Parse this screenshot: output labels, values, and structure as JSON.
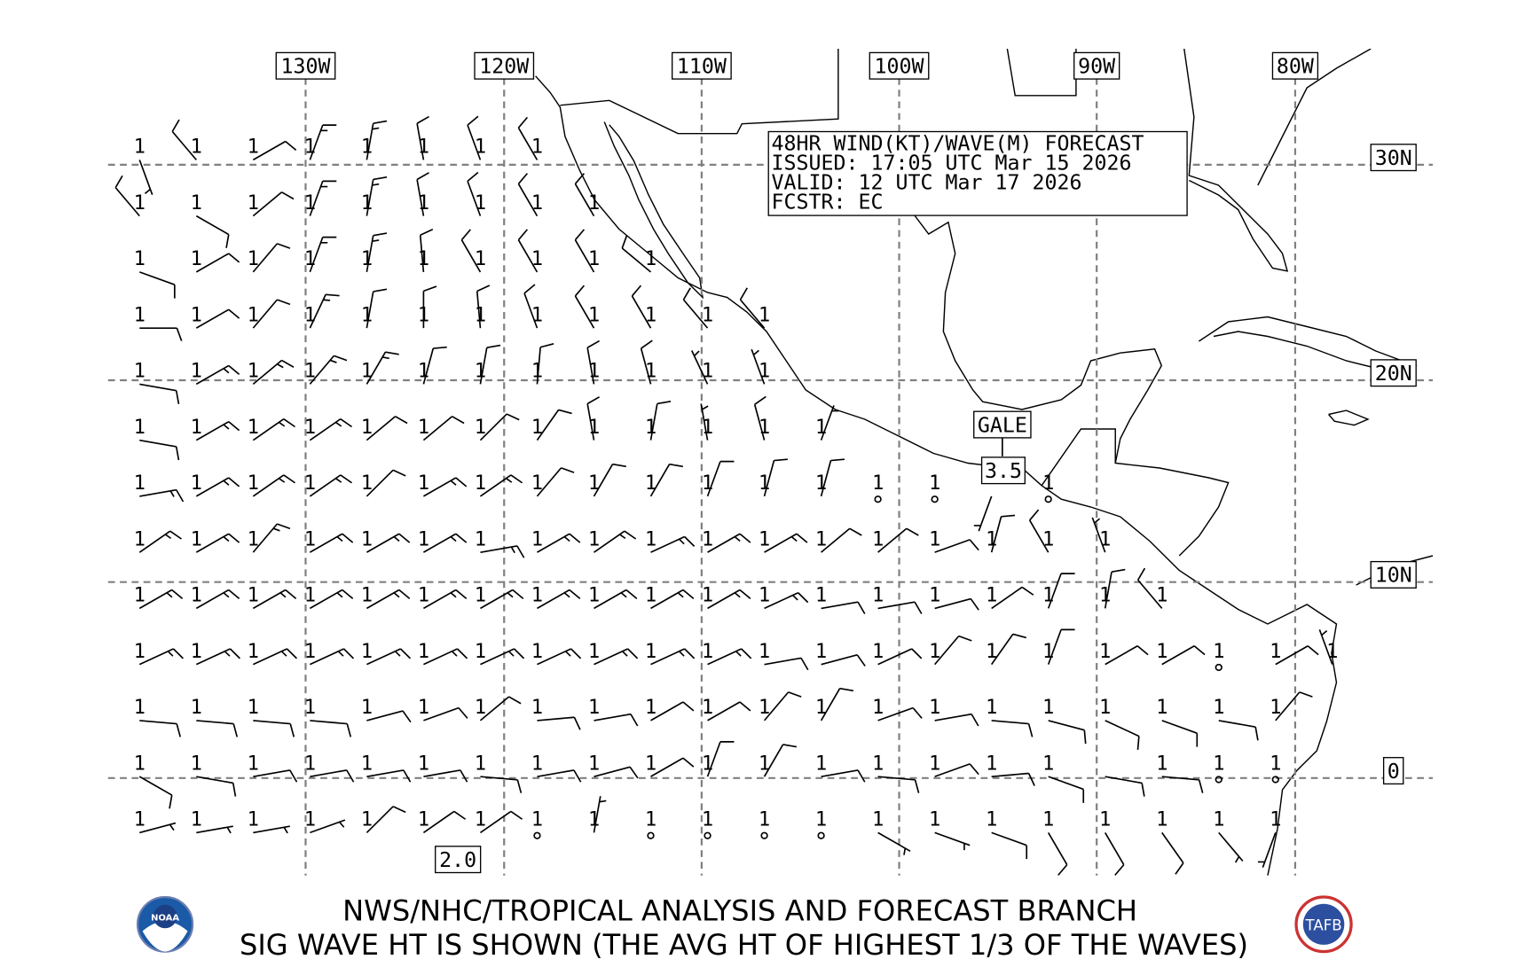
{
  "header": {
    "title_lines": [
      "48HR WIND(KT)/WAVE(M) FORECAST",
      "ISSUED: 17:05 UTC Mar 15 2026",
      "VALID: 12 UTC Mar 17 2026",
      "FCSTR: EC"
    ]
  },
  "longitude_labels": [
    "130W",
    "120W",
    "110W",
    "100W",
    "90W",
    "80W"
  ],
  "latitude_labels": [
    "30N",
    "20N",
    "10N",
    "0"
  ],
  "annotations": {
    "gale": "GALE",
    "gale_wave": "3.5",
    "wave_label_south": "2.0"
  },
  "footer": {
    "line1": "NWS/NHC/TROPICAL ANALYSIS AND FORECAST BRANCH",
    "line2": "SIG WAVE HT IS SHOWN (THE AVG HT OF HIGHEST 1/3 OF THE WAVES)",
    "logo_left": "NOAA",
    "logo_right": "TAFB"
  },
  "grid_points_note_units": {
    "wave": "m",
    "wind": "kt"
  },
  "wind_wave_grid": [
    [
      [
        "1",
        160,
        5
      ],
      [
        "1",
        320,
        10
      ],
      [
        "1",
        60,
        10
      ],
      [
        "1",
        20,
        15
      ],
      [
        "1",
        10,
        15
      ],
      [
        "1",
        350,
        10
      ],
      [
        "1",
        340,
        10
      ],
      [
        "1",
        330,
        10
      ]
    ],
    [
      [
        "1",
        320,
        10
      ],
      [
        "1",
        120,
        10
      ],
      [
        "1",
        50,
        10
      ],
      [
        "1",
        20,
        15
      ],
      [
        "1",
        10,
        15
      ],
      [
        "1",
        350,
        10
      ],
      [
        "1",
        340,
        10
      ],
      [
        "1",
        330,
        10
      ],
      [
        "1",
        330,
        10
      ]
    ],
    [
      [
        "1",
        110,
        10
      ],
      [
        "1",
        60,
        10
      ],
      [
        "1",
        40,
        10
      ],
      [
        "1",
        20,
        15
      ],
      [
        "1",
        10,
        15
      ],
      [
        "1",
        355,
        10
      ],
      [
        "1",
        330,
        10
      ],
      [
        "1",
        330,
        10
      ],
      [
        "1",
        330,
        10
      ],
      [
        "1",
        310,
        10
      ]
    ],
    [
      [
        "1",
        90,
        10
      ],
      [
        "1",
        60,
        10
      ],
      [
        "1",
        40,
        10
      ],
      [
        "1",
        25,
        15
      ],
      [
        "1",
        10,
        10
      ],
      [
        "1",
        0,
        10
      ],
      [
        "1",
        355,
        10
      ],
      [
        "1",
        340,
        10
      ],
      [
        "1",
        330,
        10
      ],
      [
        "1",
        330,
        10
      ],
      [
        "1",
        320,
        10
      ],
      [
        "1",
        320,
        10
      ]
    ],
    [
      [
        "1",
        100,
        10
      ],
      [
        "1",
        60,
        15
      ],
      [
        "1",
        50,
        15
      ],
      [
        "1",
        40,
        15
      ],
      [
        "1",
        30,
        15
      ],
      [
        "1",
        15,
        10
      ],
      [
        "1",
        10,
        10
      ],
      [
        "1",
        5,
        10
      ],
      [
        "1",
        350,
        10
      ],
      [
        "1",
        345,
        10
      ],
      [
        "1",
        335,
        5
      ],
      [
        "1",
        340,
        5
      ]
    ],
    [
      [
        "1",
        100,
        10
      ],
      [
        "1",
        60,
        15
      ],
      [
        "1",
        55,
        15
      ],
      [
        "1",
        55,
        15
      ],
      [
        "1",
        50,
        10
      ],
      [
        "1",
        50,
        10
      ],
      [
        "1",
        45,
        10
      ],
      [
        "1",
        35,
        10
      ],
      [
        "1",
        350,
        10
      ],
      [
        "1",
        10,
        10
      ],
      [
        "1",
        350,
        5
      ],
      [
        "1",
        345,
        10
      ],
      [
        "1",
        20,
        5
      ]
    ],
    [
      [
        "1",
        80,
        15
      ],
      [
        "1",
        60,
        15
      ],
      [
        "1",
        55,
        15
      ],
      [
        "1",
        55,
        15
      ],
      [
        "1",
        45,
        10
      ],
      [
        "1",
        60,
        15
      ],
      [
        "1",
        55,
        15
      ],
      [
        "1",
        40,
        10
      ],
      [
        "1",
        30,
        10
      ],
      [
        "1",
        30,
        10
      ],
      [
        "1",
        20,
        10
      ],
      [
        "1",
        15,
        10
      ],
      [
        "1",
        15,
        10
      ],
      [
        "1",
        0,
        0
      ],
      [
        "1",
        0,
        0
      ],
      [
        "",
        200,
        5
      ],
      [
        "1",
        0,
        0
      ]
    ],
    [
      [
        "1",
        55,
        15
      ],
      [
        "1",
        60,
        15
      ],
      [
        "1",
        40,
        15
      ],
      [
        "1",
        60,
        15
      ],
      [
        "1",
        60,
        15
      ],
      [
        "1",
        60,
        15
      ],
      [
        "1",
        80,
        15
      ],
      [
        "1",
        60,
        15
      ],
      [
        "1",
        55,
        15
      ],
      [
        "1",
        65,
        15
      ],
      [
        "1",
        60,
        15
      ],
      [
        "1",
        60,
        15
      ],
      [
        "1",
        50,
        10
      ],
      [
        "1",
        50,
        10
      ],
      [
        "1",
        70,
        10
      ],
      [
        "1",
        15,
        10
      ],
      [
        "1",
        330,
        10
      ],
      [
        "1",
        340,
        5
      ]
    ],
    [
      [
        "1",
        60,
        15
      ],
      [
        "1",
        60,
        15
      ],
      [
        "1",
        60,
        15
      ],
      [
        "1",
        60,
        15
      ],
      [
        "1",
        60,
        15
      ],
      [
        "1",
        60,
        15
      ],
      [
        "1",
        60,
        15
      ],
      [
        "1",
        60,
        15
      ],
      [
        "1",
        60,
        15
      ],
      [
        "1",
        60,
        15
      ],
      [
        "1",
        60,
        15
      ],
      [
        "1",
        65,
        15
      ],
      [
        "1",
        80,
        10
      ],
      [
        "1",
        80,
        10
      ],
      [
        "1",
        75,
        10
      ],
      [
        "1",
        55,
        10
      ],
      [
        "1",
        20,
        10
      ],
      [
        "1",
        10,
        10
      ],
      [
        "1",
        320,
        10
      ]
    ],
    [
      [
        "1",
        65,
        15
      ],
      [
        "1",
        65,
        15
      ],
      [
        "1",
        65,
        15
      ],
      [
        "1",
        65,
        15
      ],
      [
        "1",
        65,
        15
      ],
      [
        "1",
        65,
        15
      ],
      [
        "1",
        65,
        15
      ],
      [
        "1",
        65,
        15
      ],
      [
        "1",
        65,
        15
      ],
      [
        "1",
        65,
        15
      ],
      [
        "1",
        65,
        15
      ],
      [
        "1",
        80,
        10
      ],
      [
        "1",
        75,
        10
      ],
      [
        "1",
        65,
        10
      ],
      [
        "1",
        40,
        10
      ],
      [
        "1",
        35,
        10
      ],
      [
        "1",
        20,
        10
      ],
      [
        "1",
        60,
        10
      ],
      [
        "1",
        60,
        10
      ],
      [
        "1",
        0,
        0
      ],
      [
        "1",
        60,
        10
      ],
      [
        "1",
        340,
        5
      ]
    ],
    [
      [
        "1",
        95,
        10
      ],
      [
        "1",
        95,
        10
      ],
      [
        "1",
        95,
        10
      ],
      [
        "1",
        95,
        10
      ],
      [
        "1",
        75,
        10
      ],
      [
        "1",
        70,
        10
      ],
      [
        "1",
        50,
        10
      ],
      [
        "1",
        85,
        10
      ],
      [
        "1",
        80,
        10
      ],
      [
        "1",
        60,
        10
      ],
      [
        "1",
        60,
        10
      ],
      [
        "1",
        40,
        10
      ],
      [
        "1",
        30,
        10
      ],
      [
        "1",
        70,
        10
      ],
      [
        "1",
        80,
        10
      ],
      [
        "1",
        95,
        10
      ],
      [
        "1",
        105,
        10
      ],
      [
        "1",
        115,
        10
      ],
      [
        "1",
        110,
        10
      ],
      [
        "1",
        100,
        10
      ],
      [
        "1",
        40,
        10
      ]
    ],
    [
      [
        "1",
        120,
        10
      ],
      [
        "1",
        100,
        10
      ],
      [
        "1",
        80,
        10
      ],
      [
        "1",
        80,
        10
      ],
      [
        "1",
        80,
        10
      ],
      [
        "1",
        80,
        10
      ],
      [
        "1",
        95,
        10
      ],
      [
        "1",
        80,
        10
      ],
      [
        "1",
        75,
        10
      ],
      [
        "1",
        60,
        10
      ],
      [
        "1",
        20,
        10
      ],
      [
        "1",
        30,
        10
      ],
      [
        "1",
        80,
        10
      ],
      [
        "1",
        95,
        10
      ],
      [
        "1",
        70,
        10
      ],
      [
        "1",
        85,
        10
      ],
      [
        "1",
        110,
        10
      ],
      [
        "",
        100,
        10
      ],
      [
        "1",
        95,
        10
      ],
      [
        "1",
        0,
        0
      ],
      [
        "1",
        0,
        0
      ]
    ],
    [
      [
        "1",
        75,
        5
      ],
      [
        "1",
        80,
        5
      ],
      [
        "1",
        80,
        5
      ],
      [
        "1",
        70,
        5
      ],
      [
        "1",
        45,
        10
      ],
      [
        "1",
        55,
        10
      ],
      [
        "1",
        55,
        10
      ],
      [
        "1",
        0,
        0
      ],
      [
        "1",
        10,
        5
      ],
      [
        "1",
        0,
        0
      ],
      [
        "1",
        0,
        0
      ],
      [
        "1",
        0,
        0
      ],
      [
        "1",
        0,
        0
      ],
      [
        "1",
        120,
        5
      ],
      [
        "1",
        110,
        5
      ],
      [
        "1",
        110,
        10
      ],
      [
        "1",
        150,
        10
      ],
      [
        "1",
        150,
        10
      ],
      [
        "1",
        145,
        10
      ],
      [
        "1",
        140,
        5
      ],
      [
        "1",
        200,
        5
      ]
    ]
  ]
}
